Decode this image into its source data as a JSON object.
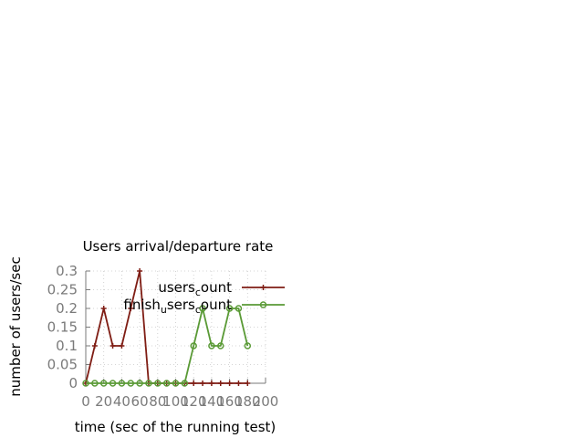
{
  "chart_data": {
    "type": "line",
    "title": "Users arrival/departure rate",
    "xlabel": "time (sec of the running test)",
    "ylabel": "number of users/sec",
    "xlim": [
      0,
      200
    ],
    "ylim": [
      0,
      0.3
    ],
    "x_ticks": [
      "0",
      "20",
      "40",
      "60",
      "80",
      "100",
      "120",
      "140",
      "160",
      "180",
      "200"
    ],
    "y_ticks": [
      "0",
      "0.05",
      "0.1",
      "0.15",
      "0.2",
      "0.25",
      "0.3"
    ],
    "grid": true,
    "legend_position": "top-right",
    "series": [
      {
        "legend_base": "users",
        "legend_sub": "c",
        "legend_rest": "ount",
        "color": "#7f1d14",
        "marker": "plus",
        "x": [
          0,
          10,
          20,
          30,
          40,
          50,
          60,
          70,
          80,
          90,
          100,
          110,
          120,
          130,
          140,
          150,
          160,
          170,
          180
        ],
        "y": [
          0,
          0.1,
          0.2,
          0.1,
          0.1,
          0.2,
          0.3,
          0,
          0,
          0,
          0,
          0,
          0,
          0,
          0,
          0,
          0,
          0,
          0
        ]
      },
      {
        "legend_base": "finish",
        "legend_sub": "u",
        "legend_rest": "sers",
        "legend_sub2": "c",
        "legend_rest2": "ount",
        "color": "#5a9a36",
        "marker": "circle",
        "x": [
          0,
          10,
          20,
          30,
          40,
          50,
          60,
          70,
          80,
          90,
          100,
          110,
          120,
          130,
          140,
          150,
          160,
          170,
          180
        ],
        "y": [
          0,
          0,
          0,
          0,
          0,
          0,
          0,
          0,
          0,
          0,
          0,
          0,
          0.1,
          0.2,
          0.1,
          0.1,
          0.2,
          0.2,
          0.1
        ]
      }
    ]
  }
}
